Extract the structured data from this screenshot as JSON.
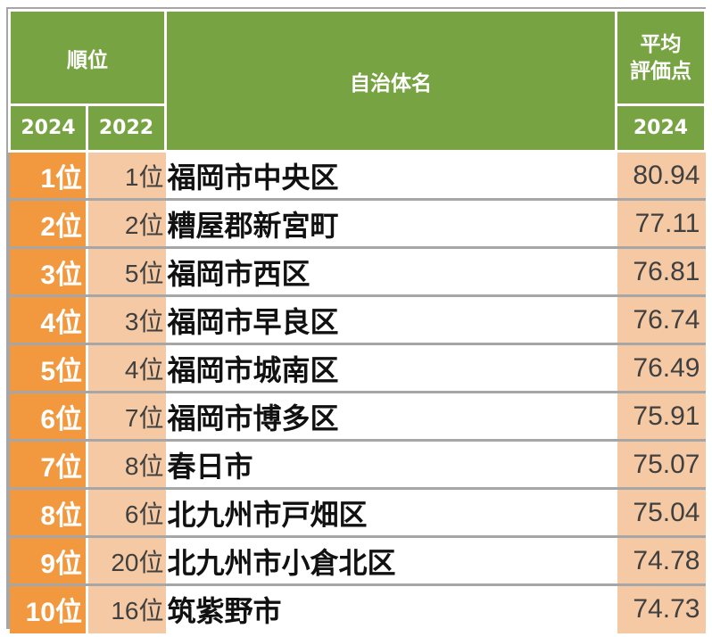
{
  "header": {
    "rank_group": "順位",
    "name_header": "自治体名",
    "score_line1": "平均",
    "score_line2": "評価点",
    "year_now": "2024",
    "year_prev": "2022",
    "score_year": "2024"
  },
  "rank_suffix": "位",
  "rows": [
    {
      "rank_now": "1",
      "rank_prev": "1",
      "name": "福岡市中央区",
      "score": "80.94"
    },
    {
      "rank_now": "2",
      "rank_prev": "2",
      "name": "糟屋郡新宮町",
      "score": "77.11"
    },
    {
      "rank_now": "3",
      "rank_prev": "5",
      "name": "福岡市西区",
      "score": "76.81"
    },
    {
      "rank_now": "4",
      "rank_prev": "3",
      "name": "福岡市早良区",
      "score": "76.74"
    },
    {
      "rank_now": "5",
      "rank_prev": "4",
      "name": "福岡市城南区",
      "score": "76.49"
    },
    {
      "rank_now": "6",
      "rank_prev": "7",
      "name": "福岡市博多区",
      "score": "75.91"
    },
    {
      "rank_now": "7",
      "rank_prev": "8",
      "name": "春日市",
      "score": "75.07"
    },
    {
      "rank_now": "8",
      "rank_prev": "6",
      "name": "北九州市戸畑区",
      "score": "75.04"
    },
    {
      "rank_now": "9",
      "rank_prev": "20",
      "name": "北九州市小倉北区",
      "score": "74.78"
    },
    {
      "rank_now": "10",
      "rank_prev": "16",
      "name": "筑紫野市",
      "score": "74.73"
    }
  ],
  "colors": {
    "header_green": "#77a342",
    "rank_orange": "#f2993f",
    "light_peach": "#f5c9a3"
  }
}
